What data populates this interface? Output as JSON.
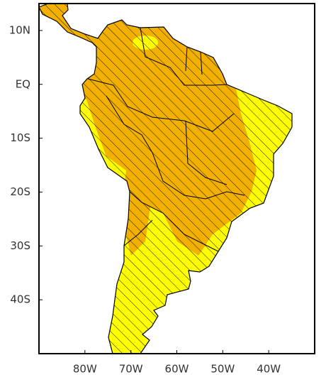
{
  "map": {
    "lat_range": [
      15,
      -50
    ],
    "lon_range": [
      -90,
      -30
    ],
    "lat_ticks": [
      {
        "value": 10,
        "label": "10N"
      },
      {
        "value": 0,
        "label": "EQ"
      },
      {
        "value": -10,
        "label": "10S"
      },
      {
        "value": -20,
        "label": "20S"
      },
      {
        "value": -30,
        "label": "30S"
      },
      {
        "value": -40,
        "label": "40S"
      }
    ],
    "lon_ticks": [
      {
        "value": -80,
        "label": "80W"
      },
      {
        "value": -70,
        "label": "70W"
      },
      {
        "value": -60,
        "label": "60W"
      },
      {
        "value": -50,
        "label": "50W"
      },
      {
        "value": -40,
        "label": "40W"
      }
    ]
  }
}
